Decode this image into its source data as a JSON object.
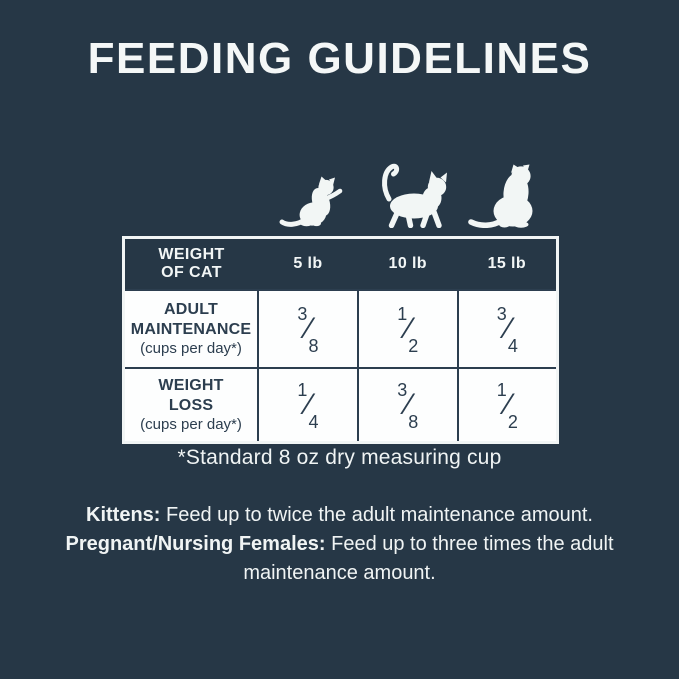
{
  "title": "FEEDING GUIDELINES",
  "colors": {
    "background": "#263746",
    "text_light": "#F2F6F6",
    "table_body_bg": "#FDFEFE",
    "table_line_dark": "#2C3E4F",
    "table_outer_border": "#F1F5F5"
  },
  "cat_icons": [
    {
      "name": "kitten-icon",
      "represents": "5 lb"
    },
    {
      "name": "walking-cat-icon",
      "represents": "10 lb"
    },
    {
      "name": "sitting-cat-icon",
      "represents": "15 lb"
    }
  ],
  "table": {
    "header": {
      "col0_line1": "WEIGHT",
      "col0_line2": "OF CAT",
      "columns": [
        "5 lb",
        "10 lb",
        "15 lb"
      ]
    },
    "rows": [
      {
        "label_line1": "ADULT",
        "label_line2": "MAINTENANCE",
        "label_note": "(cups per day*)",
        "values": [
          {
            "n": "3",
            "d": "8"
          },
          {
            "n": "1",
            "d": "2"
          },
          {
            "n": "3",
            "d": "4"
          }
        ]
      },
      {
        "label_line1": "WEIGHT",
        "label_line2": "LOSS",
        "label_note": "(cups per day*)",
        "values": [
          {
            "n": "1",
            "d": "4"
          },
          {
            "n": "3",
            "d": "8"
          },
          {
            "n": "1",
            "d": "2"
          }
        ]
      }
    ]
  },
  "fraction_slash": "⁄",
  "footnote": "*Standard 8 oz dry measuring cup",
  "notes": [
    {
      "label": "Kittens:",
      "text": " Feed up to twice the adult maintenance amount."
    },
    {
      "label": "Pregnant/Nursing Females:",
      "text": " Feed up to three times the adult maintenance amount."
    }
  ]
}
